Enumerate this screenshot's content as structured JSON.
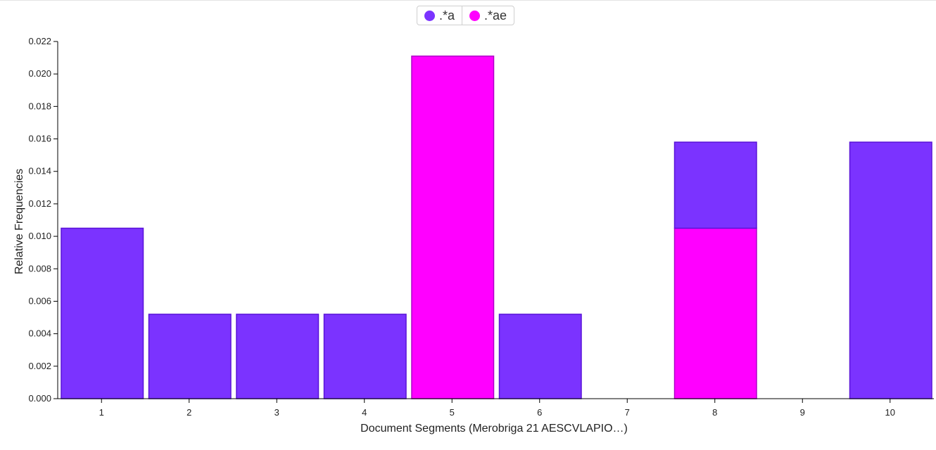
{
  "chart_data": {
    "type": "bar",
    "stacked": true,
    "title": "",
    "xlabel": "Document Segments (Merobriga 21 AESCVLAPIO…)",
    "ylabel": "Relative Frequencies",
    "ylim": [
      0,
      0.022
    ],
    "yticks": [
      "0.000",
      "0.002",
      "0.004",
      "0.006",
      "0.008",
      "0.010",
      "0.012",
      "0.014",
      "0.016",
      "0.018",
      "0.020",
      "0.022"
    ],
    "categories": [
      "1",
      "2",
      "3",
      "4",
      "5",
      "6",
      "7",
      "8",
      "9",
      "10"
    ],
    "legend_position": "top-center",
    "grid": false,
    "series": [
      {
        "name": ".*ae",
        "color": "#ff00ff",
        "stroke": "#b000c8",
        "values": [
          0,
          0,
          0,
          0,
          0.0211,
          0,
          0,
          0.0105,
          0,
          0
        ]
      },
      {
        "name": ".*a",
        "color": "#7b33ff",
        "stroke": "#5a14d8",
        "values": [
          0.0105,
          0.0052,
          0.0052,
          0.0052,
          0,
          0.0052,
          0,
          0.0053,
          0,
          0.0158
        ]
      }
    ]
  }
}
